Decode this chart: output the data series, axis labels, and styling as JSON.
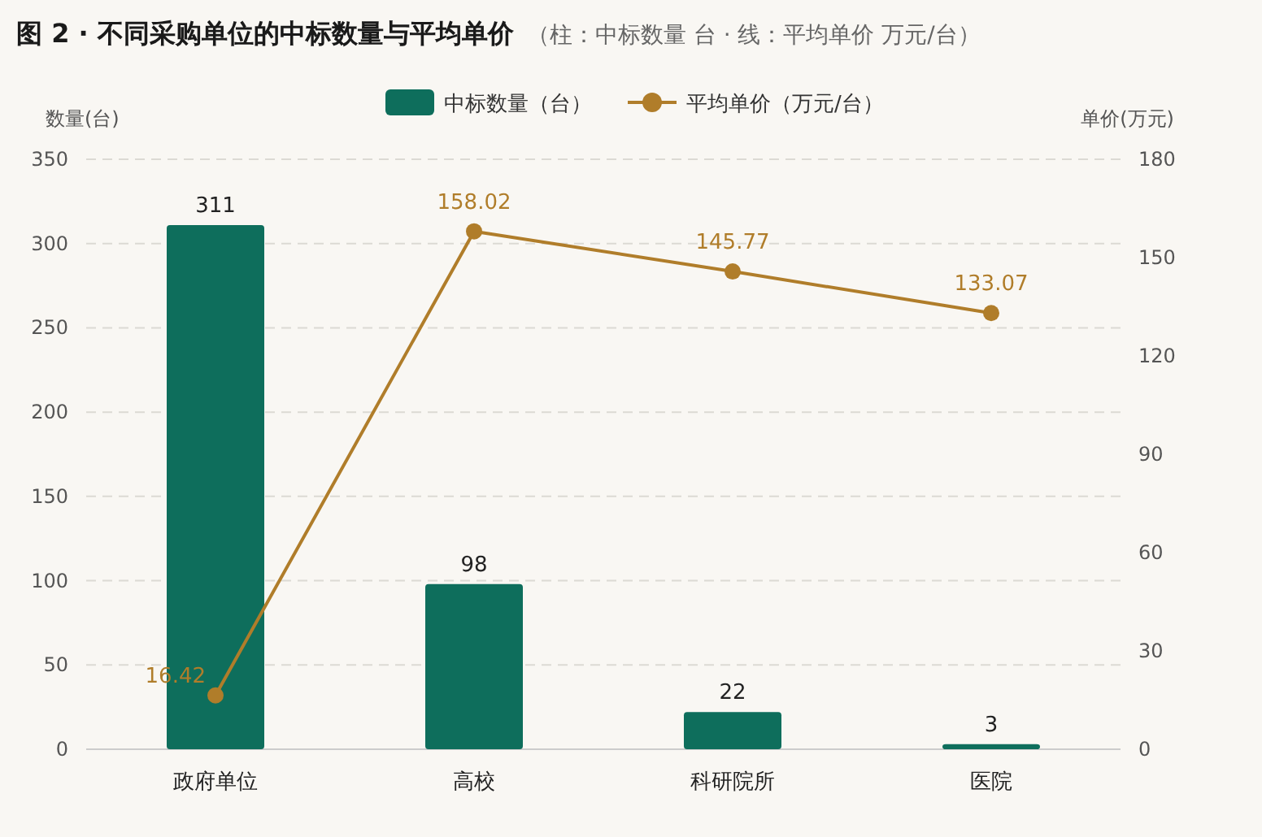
{
  "chart_data": {
    "type": "bar",
    "title": "图 2 · 不同采购单位的中标数量与平均单价",
    "subtitle": "（柱：中标数量 台 · 线：平均单价 万元/台）",
    "ylabel": "数量(台)",
    "y2label": "单价(万元)",
    "categories": [
      "政府单位",
      "高校",
      "科研院所",
      "医院"
    ],
    "series": [
      {
        "name": "中标数量（台）",
        "color": "#0e6e5c",
        "values": [
          311,
          98,
          22,
          3
        ]
      },
      {
        "name": "平均单价（万元/台）",
        "type": "line",
        "axis": "y2",
        "color": "#b07d2a",
        "values": [
          16.42,
          158.02,
          145.77,
          133.07
        ]
      }
    ],
    "ylim": [
      0,
      350
    ],
    "yticks": [
      0,
      50,
      100,
      150,
      200,
      250,
      300,
      350
    ],
    "y2lim": [
      0,
      180
    ],
    "y2ticks": [
      0,
      30,
      60,
      90,
      120,
      150,
      180
    ],
    "grid": "y",
    "legend": "top",
    "marker": "circle",
    "line_style": "solid",
    "data_labels": true
  }
}
